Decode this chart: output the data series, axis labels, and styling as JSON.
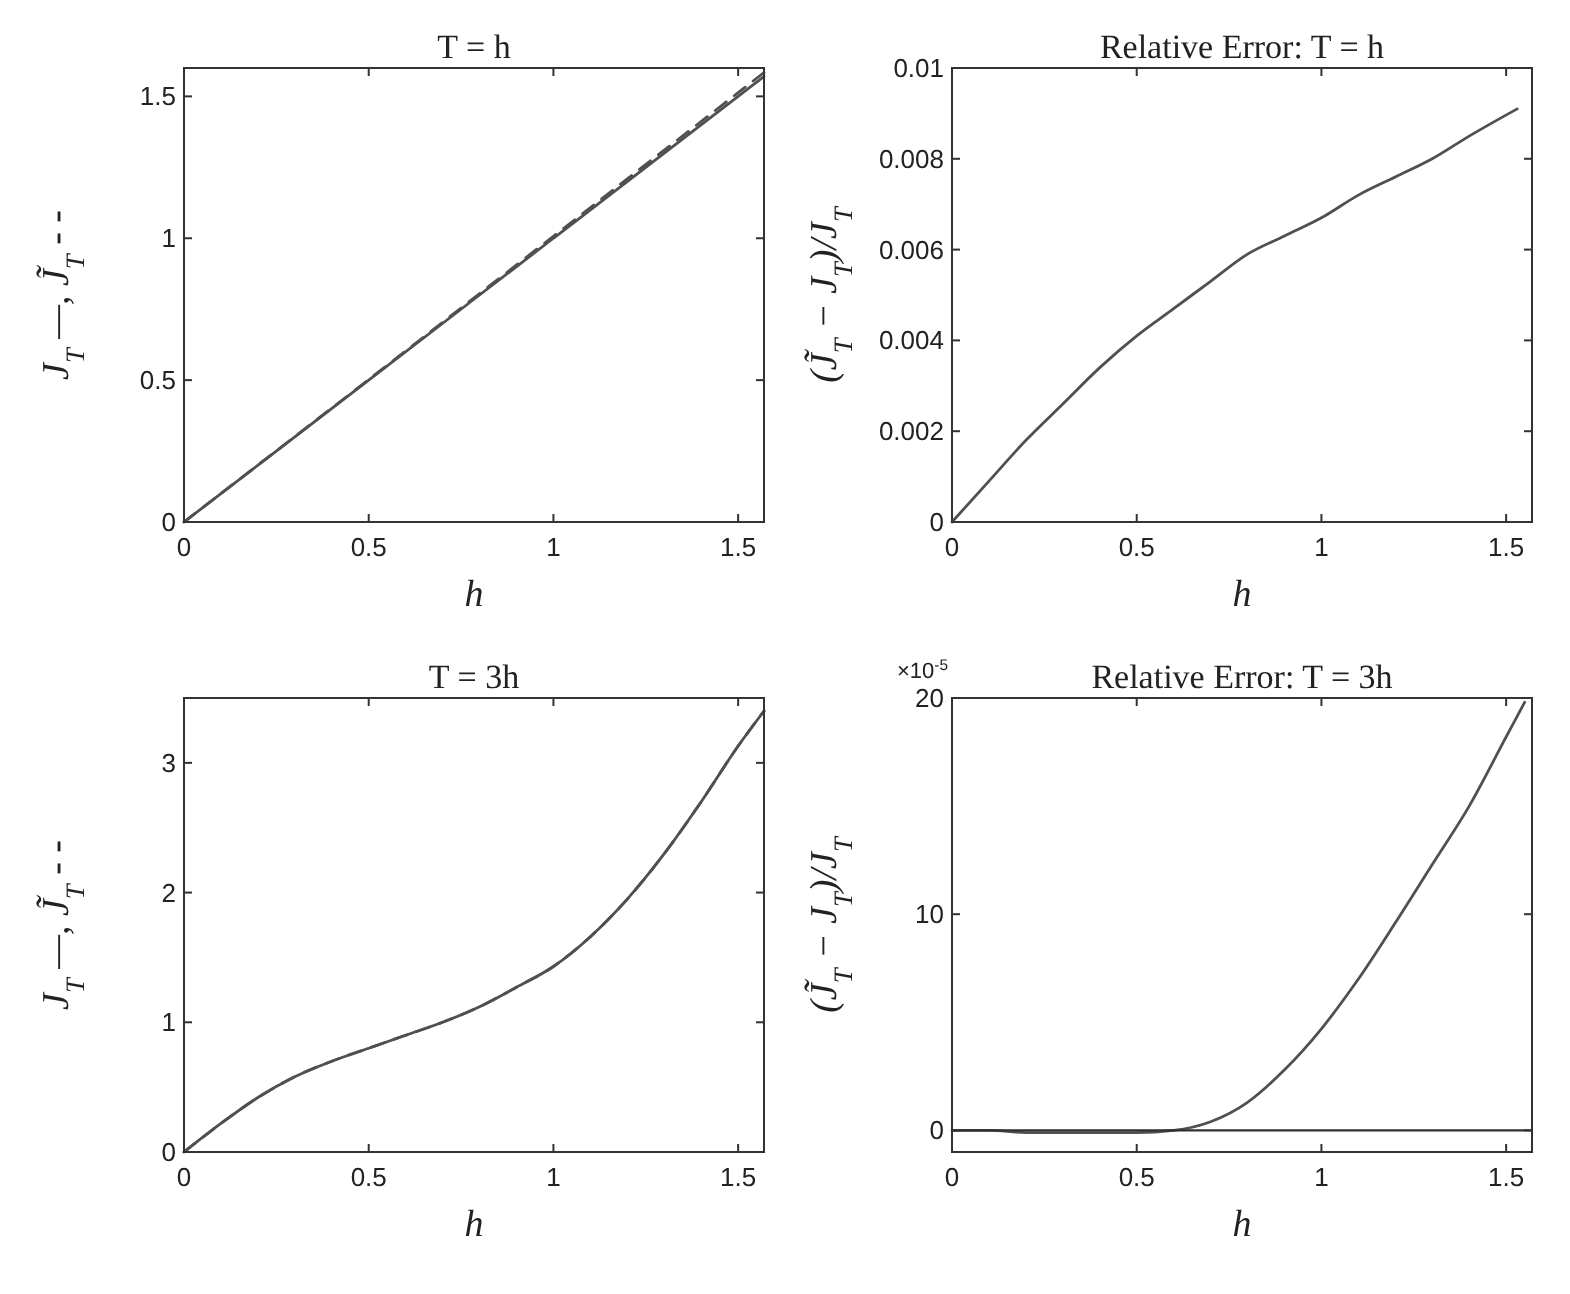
{
  "chart_data": [
    {
      "type": "line",
      "title": "T = h",
      "xlabel": "h",
      "ylabel": "J$_{T}$ —, J̃$_{T}$ - -",
      "xlim": [
        0,
        1.57
      ],
      "ylim": [
        0,
        1.6
      ],
      "xticks": [
        0,
        0.5,
        1,
        1.5
      ],
      "yticks": [
        0,
        0.5,
        1,
        1.5
      ],
      "grid": false,
      "series": [
        {
          "color": "#505050",
          "line_style": "solid",
          "x": [
            0,
            0.5,
            1,
            1.5,
            1.57
          ],
          "values": [
            0,
            0.5,
            1,
            1.5,
            1.57
          ]
        },
        {
          "color": "#505050",
          "line_style": "dashed",
          "x": [
            0,
            0.5,
            1,
            1.5,
            1.57
          ],
          "values": [
            0,
            0.502,
            1.007,
            1.513,
            1.584
          ]
        }
      ]
    },
    {
      "type": "line",
      "title": "Relative Error: T = h",
      "xlabel": "h",
      "ylabel": "(J̃$_{T}$ − J$_{T}$)/J$_{T}$",
      "xlim": [
        0,
        1.57
      ],
      "ylim": [
        0,
        0.01
      ],
      "xticks": [
        0,
        0.5,
        1,
        1.5
      ],
      "yticks": [
        0,
        0.002,
        0.004,
        0.006,
        0.008,
        0.01
      ],
      "grid": false,
      "series": [
        {
          "color": "#505050",
          "line_style": "solid",
          "x": [
            0,
            0.1,
            0.2,
            0.3,
            0.4,
            0.5,
            0.6,
            0.7,
            0.8,
            0.9,
            1.0,
            1.1,
            1.2,
            1.3,
            1.4,
            1.53
          ],
          "values": [
            0,
            0.0009,
            0.0018,
            0.0026,
            0.0034,
            0.0041,
            0.0047,
            0.0053,
            0.0059,
            0.0063,
            0.0067,
            0.0072,
            0.0076,
            0.008,
            0.0085,
            0.0091
          ]
        }
      ]
    },
    {
      "type": "line",
      "title": "T = 3h",
      "xlabel": "h",
      "ylabel": "J$_{T}$ —, J̃$_{T}$ - -",
      "xlim": [
        0,
        1.57
      ],
      "ylim": [
        0,
        3.5
      ],
      "xticks": [
        0,
        0.5,
        1,
        1.5
      ],
      "yticks": [
        0,
        1,
        2,
        3
      ],
      "grid": false,
      "series": [
        {
          "color": "#505050",
          "line_style": "solid",
          "x": [
            0,
            0.1,
            0.2,
            0.3,
            0.4,
            0.5,
            0.6,
            0.7,
            0.8,
            0.9,
            1.0,
            1.1,
            1.2,
            1.3,
            1.4,
            1.5,
            1.57
          ],
          "values": [
            0,
            0.22,
            0.42,
            0.58,
            0.7,
            0.8,
            0.9,
            1.0,
            1.12,
            1.27,
            1.43,
            1.66,
            1.95,
            2.3,
            2.7,
            3.13,
            3.4
          ]
        },
        {
          "color": "#505050",
          "line_style": "dashed",
          "x": [
            0,
            0.1,
            0.2,
            0.3,
            0.4,
            0.5,
            0.6,
            0.7,
            0.8,
            0.9,
            1.0,
            1.1,
            1.2,
            1.3,
            1.4,
            1.5,
            1.57
          ],
          "values": [
            0,
            0.22,
            0.42,
            0.58,
            0.7,
            0.8,
            0.9,
            1.0,
            1.12,
            1.27,
            1.43,
            1.66,
            1.95,
            2.3,
            2.7,
            3.13,
            3.4
          ]
        }
      ]
    },
    {
      "type": "line",
      "title": "Relative Error: T = 3h",
      "xlabel": "h",
      "ylabel": "(J̃$_{T}$ − J$_{T}$)/J$_{T}$",
      "xlim": [
        0,
        1.57
      ],
      "ylim": [
        -1,
        20
      ],
      "xticks": [
        0,
        0.5,
        1,
        1.5
      ],
      "yticks": [
        0,
        10,
        20
      ],
      "grid": false,
      "annotations": [
        "×10$^{-5}$"
      ],
      "ref_lines": [
        {
          "axis": "y",
          "value": 0,
          "color": "#303030"
        }
      ],
      "series": [
        {
          "color": "#505050",
          "line_style": "solid",
          "x": [
            0,
            0.1,
            0.2,
            0.3,
            0.4,
            0.5,
            0.6,
            0.7,
            0.8,
            0.9,
            1.0,
            1.1,
            1.2,
            1.3,
            1.4,
            1.5,
            1.55
          ],
          "values": [
            0,
            0,
            -0.1,
            -0.1,
            -0.1,
            -0.1,
            0,
            0.4,
            1.3,
            2.8,
            4.7,
            7.0,
            9.6,
            12.3,
            15.0,
            18.2,
            19.8
          ]
        }
      ]
    }
  ]
}
